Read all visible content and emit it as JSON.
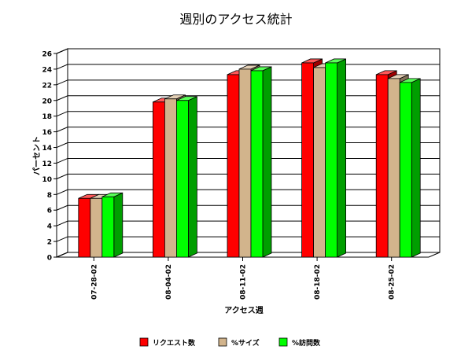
{
  "chart_data": {
    "type": "bar",
    "title": "週別のアクセス統計",
    "xlabel": "アクセス週",
    "ylabel": "パーセント",
    "categories": [
      "07-28-02",
      "08-04-02",
      "08-11-02",
      "08-18-02",
      "08-25-02"
    ],
    "ylim": [
      0,
      26
    ],
    "yticks": [
      0,
      2,
      4,
      6,
      8,
      10,
      12,
      14,
      16,
      18,
      20,
      22,
      24,
      26
    ],
    "grid": true,
    "legend_position": "bottom",
    "series": [
      {
        "name": "リクエスト数",
        "color": "#ff0000",
        "values": [
          7.5,
          19.8,
          23.3,
          24.8,
          23.3
        ]
      },
      {
        "name": "%サイズ",
        "color": "#d2b48c",
        "values": [
          7.5,
          20.2,
          24.0,
          24.2,
          22.8
        ]
      },
      {
        "name": "%訪問数",
        "color": "#00ff00",
        "values": [
          7.7,
          20.0,
          23.8,
          24.8,
          22.3
        ]
      }
    ]
  }
}
